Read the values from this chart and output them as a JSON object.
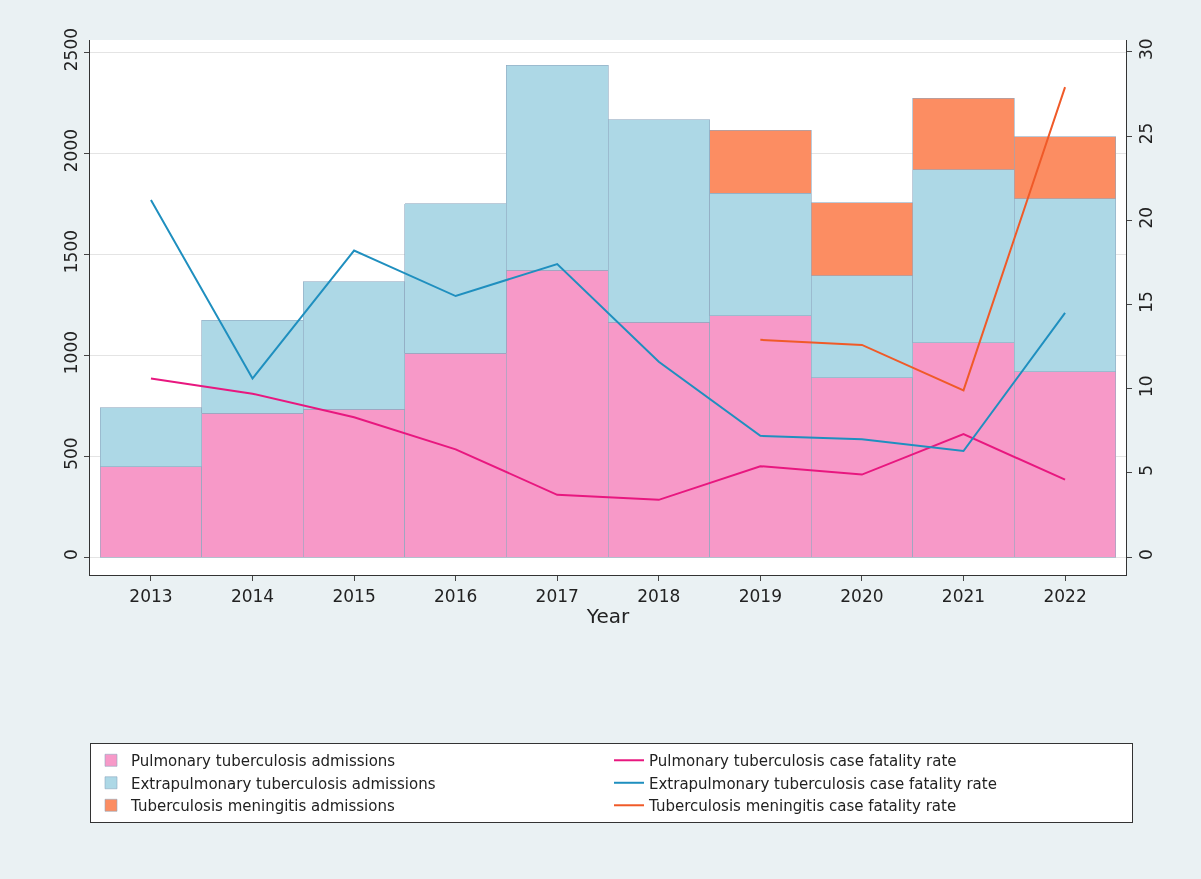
{
  "chart_data": {
    "type": "bar",
    "stacked": true,
    "xlabel": "Year",
    "categories": [
      "2013",
      "2014",
      "2015",
      "2016",
      "2017",
      "2018",
      "2019",
      "2020",
      "2021",
      "2022"
    ],
    "series": [
      {
        "name": "Pulmonary tuberculosis admissions",
        "color": "#f799c8",
        "values": [
          447,
          712,
          731,
          1010,
          1420,
          1164,
          1196,
          889,
          1061,
          917
        ]
      },
      {
        "name": "Pulmonary tuberculosis case fatality rate",
        "type": "line",
        "axis": "y2",
        "color": "#e8177f",
        "values": [
          10.6,
          9.7,
          8.3,
          6.4,
          3.7,
          3.4,
          5.4,
          4.9,
          7.3,
          4.6
        ]
      },
      {
        "name": "Extrapulmonary tuberculosis admissions",
        "color": "#add8e6",
        "values": [
          293,
          461,
          633,
          740,
          1015,
          1001,
          606,
          503,
          857,
          857
        ]
      },
      {
        "name": "Extrapulmonary tuberculosis case fatality rate",
        "type": "line",
        "axis": "y2",
        "color": "#1f8fbf",
        "values": [
          21.2,
          10.6,
          18.2,
          15.5,
          17.4,
          11.6,
          7.2,
          7.0,
          6.3,
          14.5
        ]
      },
      {
        "name": "Tuberculosis meningitis admissions",
        "color": "#fc8d62",
        "values": [
          null,
          null,
          null,
          null,
          null,
          null,
          312,
          363,
          354,
          307
        ]
      },
      {
        "name": "Tuberculosis meningitis case fatality rate",
        "type": "line",
        "axis": "y2",
        "color": "#f05a28",
        "values": [
          null,
          null,
          null,
          null,
          null,
          null,
          12.9,
          12.6,
          9.9,
          27.9
        ]
      }
    ],
    "ylim": [
      -90,
      2560
    ],
    "yticks": [
      0,
      500,
      1000,
      1500,
      2000,
      2500
    ],
    "y2lim": [
      -1.08,
      30.7
    ],
    "y2ticks": [
      0,
      5,
      10,
      15,
      20,
      25,
      30
    ],
    "grid": "y",
    "legend": "bottom",
    "marker": "none",
    "line_style": "solid"
  }
}
